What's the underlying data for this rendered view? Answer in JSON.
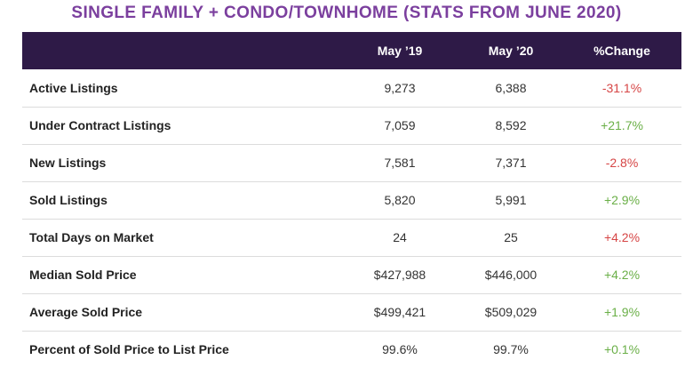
{
  "title": "SINGLE FAMILY + CONDO/TOWNHOME (STATS FROM JUNE 2020)",
  "colors": {
    "title": "#7b3f9e",
    "header_bg": "#2e1a47",
    "negative": "#d64545",
    "positive": "#6aaf47"
  },
  "columns": {
    "may19": "May ’19",
    "may20": "May ’20",
    "change": "%Change"
  },
  "rows": [
    {
      "label": "Active Listings",
      "may19": "9,273",
      "may20": "6,388",
      "change": "-31.1%"
    },
    {
      "label": "Under Contract Listings",
      "may19": "7,059",
      "may20": "8,592",
      "change": "+21.7%"
    },
    {
      "label": "New Listings",
      "may19": "7,581",
      "may20": "7,371",
      "change": "-2.8%"
    },
    {
      "label": "Sold Listings",
      "may19": "5,820",
      "may20": "5,991",
      "change": "+2.9%"
    },
    {
      "label": "Total Days on Market",
      "may19": "24",
      "may20": "25",
      "change": "+4.2%"
    },
    {
      "label": "Median Sold Price",
      "may19": "$427,988",
      "may20": "$446,000",
      "change": "+4.2%"
    },
    {
      "label": "Average Sold Price",
      "may19": "$499,421",
      "may20": "$509,029",
      "change": "+1.9%"
    },
    {
      "label": "Percent of Sold Price to List Price",
      "may19": "99.6%",
      "may20": "99.7%",
      "change": "+0.1%"
    }
  ]
}
